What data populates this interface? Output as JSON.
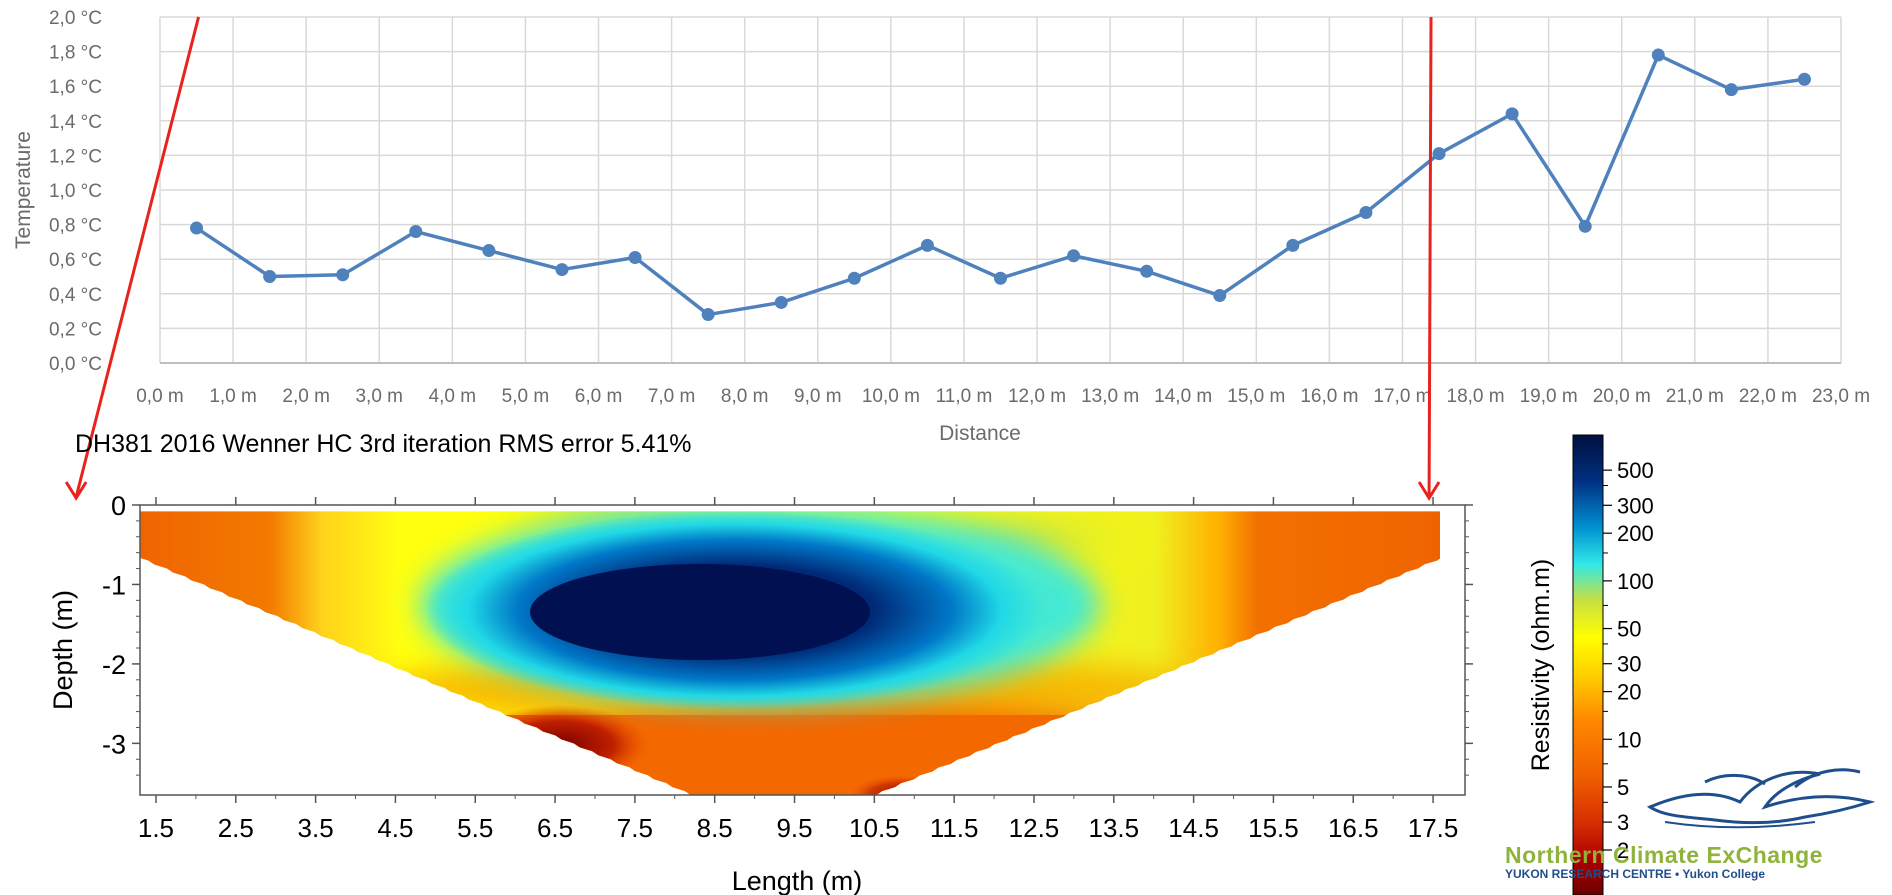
{
  "chart_data": [
    {
      "type": "line",
      "title": "",
      "xlabel": "Distance",
      "ylabel": "Temperature",
      "x_tick_labels": [
        "0,0 m",
        "1,0 m",
        "2,0 m",
        "3,0 m",
        "4,0 m",
        "5,0 m",
        "6,0 m",
        "7,0 m",
        "8,0 m",
        "9,0 m",
        "10,0 m",
        "11,0 m",
        "12,0 m",
        "13,0 m",
        "14,0 m",
        "15,0 m",
        "16,0 m",
        "17,0 m",
        "18,0 m",
        "19,0 m",
        "20,0 m",
        "21,0 m",
        "22,0 m",
        "23,0 m"
      ],
      "y_tick_labels": [
        "0,0 °C",
        "0,2 °C",
        "0,4 °C",
        "0,6 °C",
        "0,8 °C",
        "1,0 °C",
        "1,2 °C",
        "1,4 °C",
        "1,6 °C",
        "1,8 °C",
        "2,0 °C"
      ],
      "xlim": [
        0,
        23
      ],
      "ylim": [
        0,
        2.0
      ],
      "grid": true,
      "series": [
        {
          "color": "#4f81bd",
          "x": [
            0.5,
            1.5,
            2.5,
            3.5,
            4.5,
            5.5,
            6.5,
            7.5,
            8.5,
            9.5,
            10.5,
            11.5,
            12.5,
            13.5,
            14.5,
            15.5,
            16.5,
            17.5,
            18.5,
            19.5,
            20.5,
            21.5,
            22.5
          ],
          "y": [
            0.78,
            0.5,
            0.51,
            0.76,
            0.65,
            0.54,
            0.61,
            0.28,
            0.35,
            0.49,
            0.68,
            0.49,
            0.62,
            0.53,
            0.39,
            0.68,
            0.87,
            1.21,
            1.44,
            0.79,
            1.78,
            1.58,
            1.64
          ]
        }
      ],
      "markers": {
        "color": "#e8231f",
        "x": [
          0.5,
          17.5
        ]
      }
    },
    {
      "type": "heatmap",
      "title": "DH381 2016 Wenner HC 3rd iteration RMS error 5.41%",
      "xlabel": "Length (m)",
      "ylabel": "Depth (m)",
      "x_tick_labels": [
        "1.5",
        "2.5",
        "3.5",
        "4.5",
        "5.5",
        "6.5",
        "7.5",
        "8.5",
        "9.5",
        "10.5",
        "11.5",
        "12.5",
        "13.5",
        "14.5",
        "15.5",
        "16.5",
        "17.5"
      ],
      "y_tick_labels": [
        "0",
        "-1",
        "-2",
        "-3"
      ],
      "xlim": [
        1.3,
        17.9
      ],
      "ylim": [
        -3.65,
        0
      ],
      "colorbar": {
        "label": "Resistivity (ohm.m)",
        "scale": "log",
        "tick_labels": [
          "500",
          "300",
          "200",
          "100",
          "50",
          "30",
          "20",
          "10",
          "5",
          "3",
          "2"
        ],
        "tick_values": [
          500,
          300,
          200,
          100,
          50,
          30,
          20,
          10,
          5,
          3,
          2
        ],
        "colors": [
          "#6a0000",
          "#b00000",
          "#d63000",
          "#f06000",
          "#ff8800",
          "#ffd000",
          "#ffff00",
          "#c8e040",
          "#30e8e8",
          "#0090d0",
          "#003080",
          "#001040"
        ]
      }
    }
  ],
  "logo": {
    "name": "Northern Climate ExChange",
    "subtitle": "YUKON RESEARCH CENTRE • Yukon College"
  }
}
